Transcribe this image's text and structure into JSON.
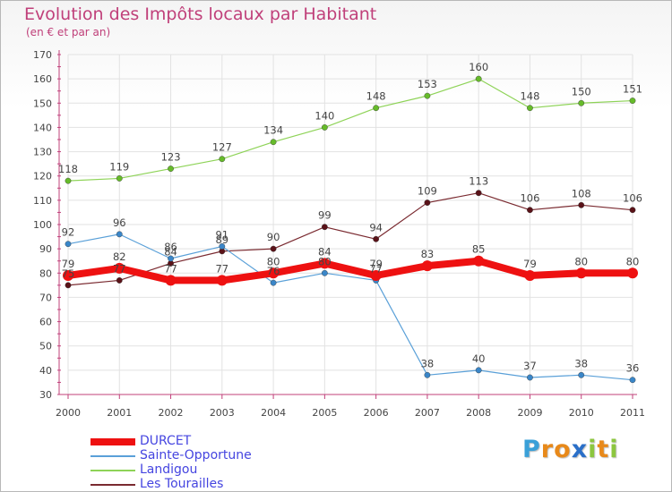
{
  "title": "Evolution des Impôts locaux par Habitant",
  "subtitle": "(en € et par an)",
  "logo": {
    "text": "Proxiti",
    "letters": [
      "P",
      "r",
      "o",
      "x",
      "i",
      "t",
      "i"
    ],
    "letter_colors": [
      "#3aa0d8",
      "#e8891a",
      "#e8891a",
      "#2a6fc8",
      "#8cc63f",
      "#e8891a",
      "#8cc63f"
    ]
  },
  "colors": {
    "axis": "#c0407a",
    "grid": "#e2e2e2",
    "label": "#444444"
  },
  "chart_data": {
    "type": "line",
    "title": "Evolution des Impôts locaux par Habitant",
    "subtitle": "(en € et par an)",
    "xlabel": "",
    "ylabel": "",
    "ylim": [
      30,
      170
    ],
    "yticks": [
      30,
      40,
      50,
      60,
      70,
      80,
      90,
      100,
      110,
      120,
      130,
      140,
      150,
      160,
      170
    ],
    "grid": true,
    "legend": "bottom-left",
    "x": [
      "2000",
      "2001",
      "2002",
      "2003",
      "2004",
      "2005",
      "2006",
      "2007",
      "2008",
      "2009",
      "2010",
      "2011"
    ],
    "series": [
      {
        "name": "Landigou",
        "color": "#8ed357",
        "marker": "#66bb2a",
        "bold": false,
        "values": [
          118,
          119,
          123,
          127,
          134,
          140,
          148,
          153,
          160,
          148,
          150,
          151
        ]
      },
      {
        "name": "Les Tourailles",
        "color": "#7a2a30",
        "marker": "#5a1218",
        "bold": false,
        "values": [
          75,
          77,
          84,
          89,
          90,
          99,
          94,
          109,
          113,
          106,
          108,
          106
        ]
      },
      {
        "name": "Sainte-Opportune",
        "color": "#5aa0d8",
        "marker": "#3a86c8",
        "bold": false,
        "values": [
          92,
          96,
          86,
          91,
          76,
          80,
          77,
          38,
          40,
          37,
          38,
          36
        ]
      },
      {
        "name": "DURCET",
        "color": "#ee1111",
        "marker": "#ee1111",
        "bold": true,
        "values": [
          79,
          82,
          77,
          77,
          80,
          84,
          79,
          83,
          85,
          79,
          80,
          80
        ]
      }
    ]
  },
  "legend_items": [
    {
      "name": "DURCET",
      "color": "#ee1111"
    },
    {
      "name": "Sainte-Opportune",
      "color": "#5aa0d8"
    },
    {
      "name": "Landigou",
      "color": "#8ed357"
    },
    {
      "name": "Les Tourailles",
      "color": "#7a2a30"
    }
  ]
}
